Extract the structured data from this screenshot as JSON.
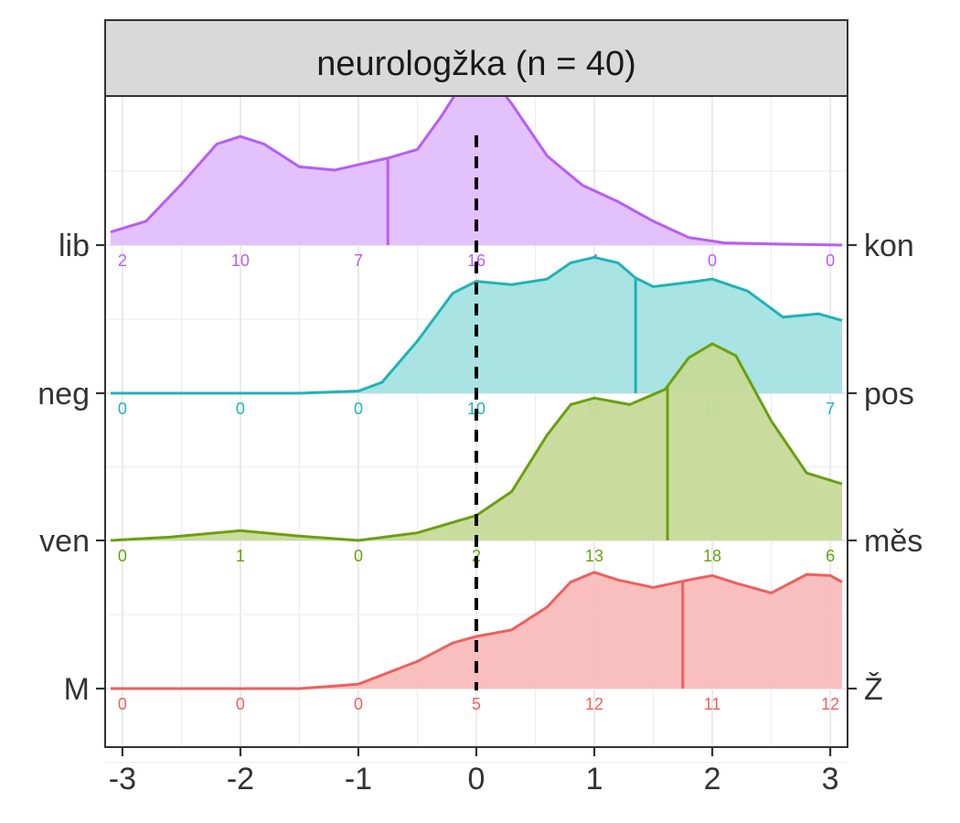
{
  "chart_data": {
    "type": "ridgeline",
    "title": "neurologžka (n = 40)",
    "xlabel": "",
    "ylabel": "",
    "xlim": [
      -3.1,
      3.1
    ],
    "x_ticks": [
      {
        "value": -3,
        "label": "-3"
      },
      {
        "value": -2,
        "label": "-2"
      },
      {
        "value": -1,
        "label": "-1"
      },
      {
        "value": 0,
        "label": "0"
      },
      {
        "value": 1,
        "label": "1"
      },
      {
        "value": 2,
        "label": "2"
      },
      {
        "value": 3,
        "label": "3"
      }
    ],
    "count_positions": [
      -3,
      -2,
      -1,
      0,
      1,
      2,
      3
    ],
    "reference_line_x": 0,
    "grid": true,
    "series": [
      {
        "left_label": "lib",
        "right_label": "kon",
        "color": "#b65ef8",
        "fill": "#e1befd",
        "mean": -0.75,
        "counts": [
          "2",
          "10",
          "7",
          "16",
          "4",
          "0",
          "0"
        ],
        "density": [
          [
            -3.1,
            0.12
          ],
          [
            -2.8,
            0.22
          ],
          [
            -2.5,
            0.56
          ],
          [
            -2.2,
            0.93
          ],
          [
            -2.0,
            1.0
          ],
          [
            -1.8,
            0.93
          ],
          [
            -1.5,
            0.72
          ],
          [
            -1.2,
            0.69
          ],
          [
            -1.0,
            0.74
          ],
          [
            -0.75,
            0.8
          ],
          [
            -0.5,
            0.88
          ],
          [
            -0.3,
            1.18
          ],
          [
            -0.1,
            1.52
          ],
          [
            0.0,
            1.62
          ],
          [
            0.1,
            1.58
          ],
          [
            0.3,
            1.3
          ],
          [
            0.6,
            0.82
          ],
          [
            0.9,
            0.55
          ],
          [
            1.2,
            0.4
          ],
          [
            1.5,
            0.22
          ],
          [
            1.8,
            0.07
          ],
          [
            2.1,
            0.02
          ],
          [
            2.5,
            0.01
          ],
          [
            3.1,
            0.0
          ]
        ]
      },
      {
        "left_label": "neg",
        "right_label": "pos",
        "color": "#1fb3b7",
        "fill": "#a4e1e2",
        "mean": 1.35,
        "counts": [
          "0",
          "0",
          "0",
          "10",
          "12",
          "10",
          "7"
        ],
        "density": [
          [
            -3.1,
            0.0
          ],
          [
            -1.5,
            0.0
          ],
          [
            -1.0,
            0.02
          ],
          [
            -0.8,
            0.1
          ],
          [
            -0.5,
            0.48
          ],
          [
            -0.2,
            0.92
          ],
          [
            0.0,
            1.03
          ],
          [
            0.3,
            1.0
          ],
          [
            0.6,
            1.05
          ],
          [
            0.8,
            1.2
          ],
          [
            1.0,
            1.25
          ],
          [
            1.2,
            1.2
          ],
          [
            1.35,
            1.06
          ],
          [
            1.5,
            0.98
          ],
          [
            1.8,
            1.02
          ],
          [
            2.0,
            1.05
          ],
          [
            2.3,
            0.94
          ],
          [
            2.6,
            0.7
          ],
          [
            2.9,
            0.73
          ],
          [
            3.1,
            0.67
          ]
        ]
      },
      {
        "left_label": "ven",
        "right_label": "měs",
        "color": "#6aa00f",
        "fill": "#c6da98",
        "mean": 1.62,
        "counts": [
          "0",
          "1",
          "0",
          "2",
          "13",
          "18",
          "6"
        ],
        "density": [
          [
            -3.1,
            0.0
          ],
          [
            -2.6,
            0.03
          ],
          [
            -2.0,
            0.09
          ],
          [
            -1.5,
            0.04
          ],
          [
            -1.0,
            0.0
          ],
          [
            -0.5,
            0.07
          ],
          [
            0.0,
            0.23
          ],
          [
            0.3,
            0.45
          ],
          [
            0.6,
            0.97
          ],
          [
            0.8,
            1.25
          ],
          [
            1.0,
            1.31
          ],
          [
            1.3,
            1.25
          ],
          [
            1.6,
            1.39
          ],
          [
            1.8,
            1.68
          ],
          [
            2.0,
            1.81
          ],
          [
            2.2,
            1.7
          ],
          [
            2.5,
            1.1
          ],
          [
            2.8,
            0.62
          ],
          [
            3.1,
            0.52
          ]
        ]
      },
      {
        "left_label": "M",
        "right_label": "Ž",
        "color": "#ef5f5f",
        "fill": "#f9bcbc",
        "mean": 1.75,
        "counts": [
          "0",
          "0",
          "0",
          "5",
          "12",
          "11",
          "12"
        ],
        "density": [
          [
            -3.1,
            0.0
          ],
          [
            -1.5,
            0.0
          ],
          [
            -1.0,
            0.04
          ],
          [
            -0.5,
            0.25
          ],
          [
            -0.2,
            0.42
          ],
          [
            0.0,
            0.48
          ],
          [
            0.3,
            0.54
          ],
          [
            0.6,
            0.75
          ],
          [
            0.8,
            0.98
          ],
          [
            1.0,
            1.07
          ],
          [
            1.2,
            1.0
          ],
          [
            1.5,
            0.93
          ],
          [
            1.8,
            1.0
          ],
          [
            2.0,
            1.04
          ],
          [
            2.2,
            0.97
          ],
          [
            2.5,
            0.88
          ],
          [
            2.8,
            1.05
          ],
          [
            3.0,
            1.04
          ],
          [
            3.1,
            0.98
          ]
        ]
      }
    ]
  }
}
